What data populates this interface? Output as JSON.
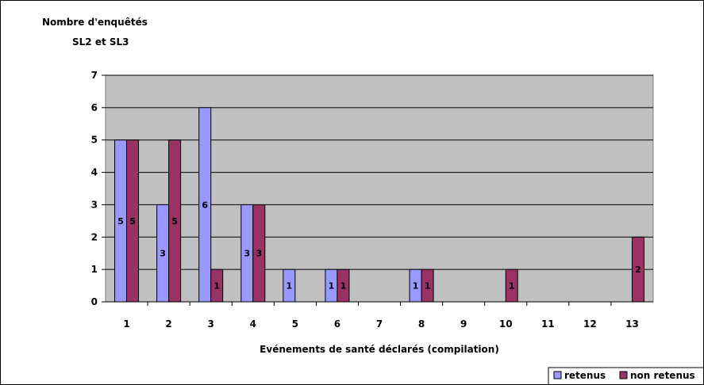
{
  "chart_data": {
    "type": "bar",
    "ylabel_line1": "Nombre d'enquêtés",
    "ylabel_line2": "SL2 et SL3",
    "xlabel": "Evénements de santé déclarés (compilation)",
    "categories": [
      "1",
      "2",
      "3",
      "4",
      "5",
      "6",
      "7",
      "8",
      "9",
      "10",
      "11",
      "12",
      "13"
    ],
    "ylim": [
      0,
      7
    ],
    "yticks": [
      "0",
      "1",
      "2",
      "3",
      "4",
      "5",
      "6",
      "7"
    ],
    "grid": true,
    "legend_position": "bottom-right",
    "series": [
      {
        "name": "retenus",
        "color": "#9999ff",
        "values": [
          5,
          3,
          6,
          3,
          1,
          1,
          0,
          1,
          0,
          0,
          0,
          0,
          0
        ]
      },
      {
        "name": "non retenus",
        "color": "#993366",
        "values": [
          5,
          5,
          1,
          3,
          0,
          1,
          0,
          1,
          0,
          1,
          0,
          0,
          2
        ]
      }
    ],
    "plot_background": "#c0c0c0"
  }
}
